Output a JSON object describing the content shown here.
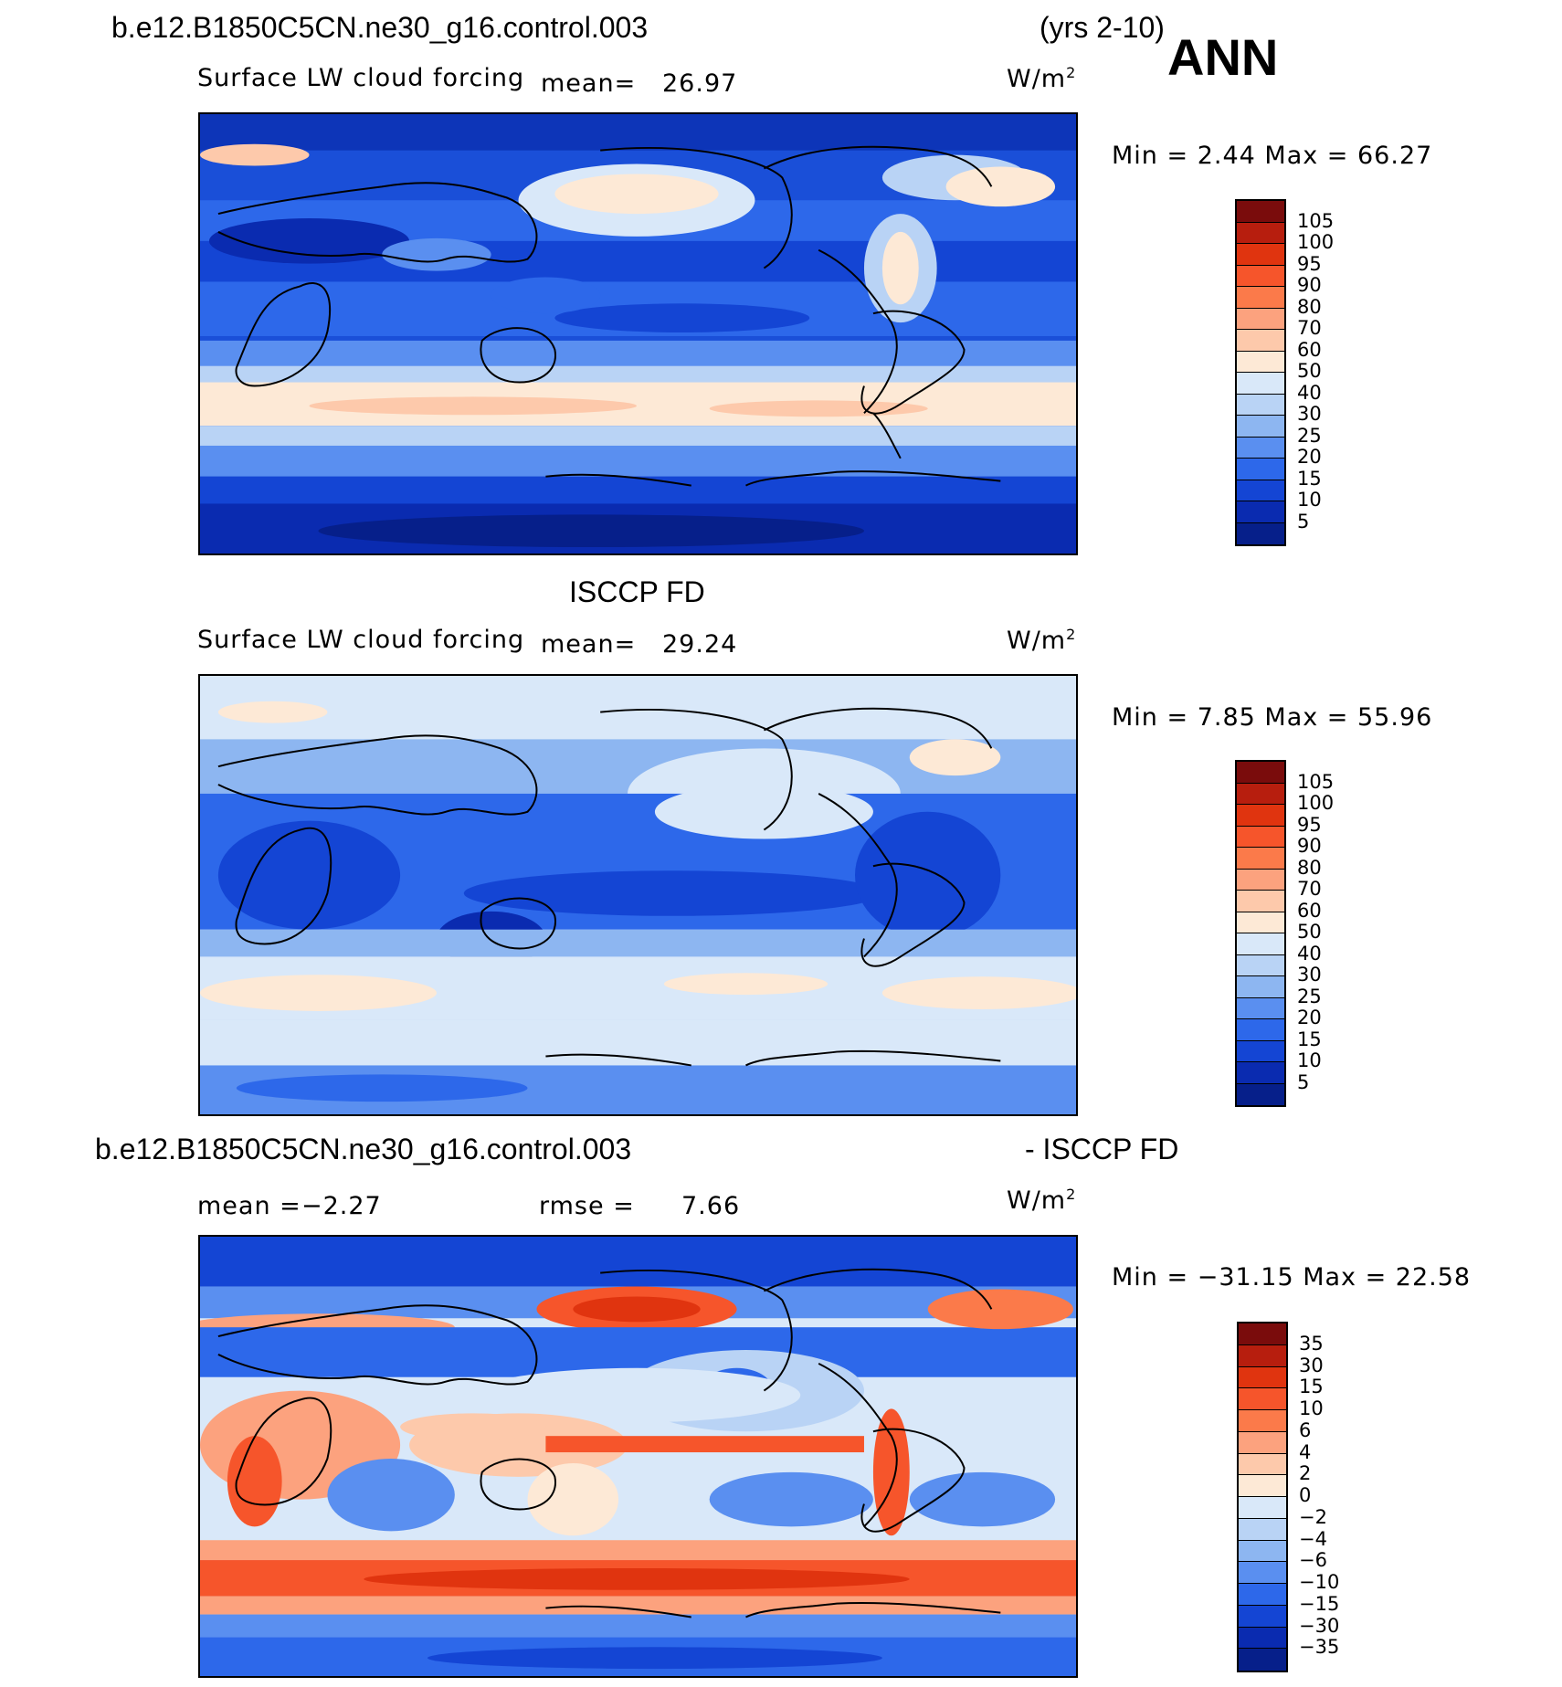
{
  "header": {
    "case_name": "b.e12.B1850C5CN.ne30_g16.control.003",
    "years": "(yrs 2-10)",
    "season": "ANN"
  },
  "panels": [
    {
      "title": "",
      "variable": "Surface LW cloud forcing",
      "mean_label": "mean=",
      "mean_value": "26.97",
      "units": "W/m",
      "units_sup": "2",
      "stats": "Min =    2.44  Max =    66.27",
      "colorbar": {
        "labels": [
          "105",
          "100",
          "95",
          "90",
          "80",
          "70",
          "60",
          "50",
          "40",
          "30",
          "25",
          "20",
          "15",
          "10",
          "5"
        ],
        "colors": [
          "#7a0c0c",
          "#b71e0e",
          "#e0340f",
          "#f6552b",
          "#fb7a4a",
          "#fca27e",
          "#fdc9ab",
          "#fde9d6",
          "#d9e8f9",
          "#b9d3f5",
          "#8db6f1",
          "#5a8ff0",
          "#2d68ea",
          "#1445d4",
          "#0a2bb0",
          "#061f8a"
        ]
      }
    },
    {
      "title": "ISCCP FD",
      "variable": "Surface LW cloud forcing",
      "mean_label": "mean=",
      "mean_value": "29.24",
      "units": "W/m",
      "units_sup": "2",
      "stats": "Min =    7.85  Max =    55.96",
      "colorbar": {
        "labels": [
          "105",
          "100",
          "95",
          "90",
          "80",
          "70",
          "60",
          "50",
          "40",
          "30",
          "25",
          "20",
          "15",
          "10",
          "5"
        ],
        "colors": [
          "#7a0c0c",
          "#b71e0e",
          "#e0340f",
          "#f6552b",
          "#fb7a4a",
          "#fca27e",
          "#fdc9ab",
          "#fde9d6",
          "#d9e8f9",
          "#b9d3f5",
          "#8db6f1",
          "#5a8ff0",
          "#2d68ea",
          "#1445d4",
          "#0a2bb0",
          "#061f8a"
        ]
      }
    },
    {
      "title_left": "b.e12.B1850C5CN.ne30_g16.control.003",
      "title_right": "- ISCCP FD",
      "mean_label": "mean =",
      "mean_value": "−2.27",
      "rmse_label": "rmse =",
      "rmse_value": "7.66",
      "units": "W/m",
      "units_sup": "2",
      "stats": "Min = −31.15  Max =    22.58",
      "colorbar": {
        "labels": [
          "35",
          "30",
          "15",
          "10",
          "6",
          "4",
          "2",
          "0",
          "−2",
          "−4",
          "−6",
          "−10",
          "−15",
          "−30",
          "−35"
        ],
        "colors": [
          "#7a0c0c",
          "#b71e0e",
          "#e0340f",
          "#f6552b",
          "#fb7a4a",
          "#fca27e",
          "#fdc9ab",
          "#fde9d6",
          "#d9e8f9",
          "#b9d3f5",
          "#8db6f1",
          "#5a8ff0",
          "#2d68ea",
          "#1445d4",
          "#0a2bb0",
          "#061f8a"
        ]
      }
    }
  ]
}
